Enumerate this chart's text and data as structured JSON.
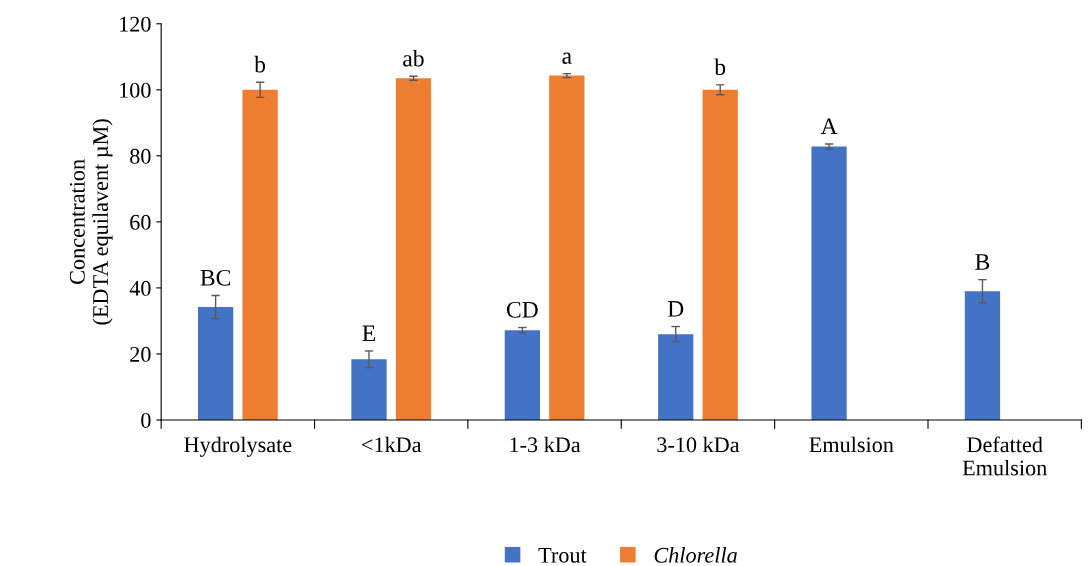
{
  "chart_data": {
    "type": "bar",
    "ylabel": "Concentration\n(EDTA equilavent µM)",
    "categories": [
      "Hydrolysate",
      "<1kDa",
      "1-3 kDa",
      "3-10 kDa",
      "Emulsion",
      "Defatted\nEmulsion"
    ],
    "series": [
      {
        "name": "Trout",
        "color": "#4472c4",
        "values": [
          34.2,
          18.4,
          27.2,
          26.0,
          82.8,
          39.0
        ],
        "errors": [
          3.5,
          2.5,
          0.8,
          2.3,
          0.8,
          3.5
        ],
        "value_labels": [
          "BC",
          "E",
          "CD",
          "D",
          "A",
          "B"
        ]
      },
      {
        "name": "Chlorella",
        "color": "#ed7d31",
        "values": [
          100.0,
          103.5,
          104.3,
          100.0,
          null,
          null
        ],
        "errors": [
          2.3,
          0.6,
          0.6,
          1.5,
          null,
          null
        ],
        "value_labels": [
          "b",
          "ab",
          "a",
          "b",
          null,
          null
        ]
      }
    ],
    "ylim": [
      0,
      120
    ],
    "yticks": [
      0,
      20,
      40,
      60,
      80,
      100,
      120
    ],
    "grid": false,
    "legend": "bottom"
  }
}
